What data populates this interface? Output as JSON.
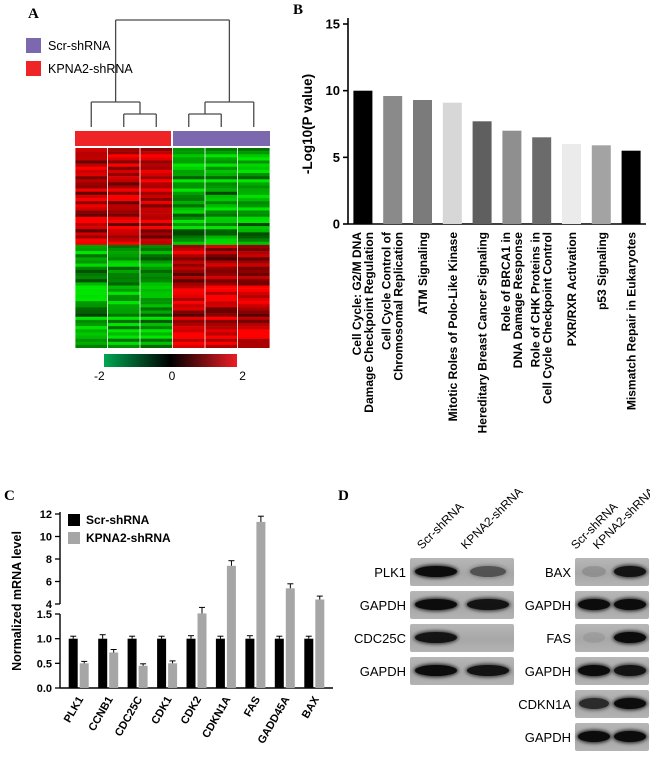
{
  "panels": {
    "a": "A",
    "b": "B",
    "c": "C",
    "d": "D"
  },
  "panel_a": {
    "legend": [
      {
        "label": "Scr-shRNA",
        "color": "#7c68ae"
      },
      {
        "label": "KPNA2-shRNA",
        "color": "#ee2426"
      }
    ],
    "column_group_bars": [
      {
        "name": "KPNA2-shRNA",
        "color": "#ee2426"
      },
      {
        "name": "Scr-shRNA",
        "color": "#7c68ae"
      }
    ],
    "colorbar": {
      "labels": [
        "-2",
        "0",
        "2"
      ],
      "colors": [
        "#00a651",
        "#000000",
        "#ed1c24"
      ]
    }
  },
  "chart_data": [
    {
      "type": "heatmap",
      "panel": "A",
      "groups": [
        "KPNA2-shRNA",
        "Scr-shRNA"
      ],
      "columns_per_group": 3,
      "rows": 64,
      "top_block_fraction": 0.47,
      "pattern": {
        "KPNA2-shRNA": {
          "top": "up-regulated (red)",
          "bottom": "down-regulated (green)"
        },
        "Scr-shRNA": {
          "top": "down-regulated (green)",
          "bottom": "up-regulated (red)"
        }
      },
      "color_scale": {
        "min": -2,
        "mid": 0,
        "max": 2,
        "min_color": "#00a651",
        "mid_color": "#000000",
        "max_color": "#ed1c24"
      },
      "dendrogram": "two main clusters of 3 samples each"
    },
    {
      "type": "bar",
      "panel": "B",
      "ylabel": "-Log10(P value)",
      "ylim": [
        0,
        15
      ],
      "yticks": [
        0,
        5,
        10,
        15
      ],
      "categories": [
        [
          "Cell Cycle: G2/M DNA",
          "Damage Checkpoint Regulation"
        ],
        [
          "Cell Cycle Control of",
          "Chromosomal Replication"
        ],
        [
          "ATM Signaling"
        ],
        [
          "Mitotic Roles of Polo-Like Kinase"
        ],
        [
          "Hereditary Breast Cancer Signaling"
        ],
        [
          "Role of BRCA1 in",
          "DNA Damage Response"
        ],
        [
          "Role of CHK Proteins in",
          "Cell Cycle Checkpoint Control"
        ],
        [
          "PXR/RXR Activation"
        ],
        [
          "p53 Signaling"
        ],
        [
          "Mismatch Repair in Eukaryotes"
        ]
      ],
      "values": [
        10.0,
        9.6,
        9.3,
        9.1,
        7.7,
        7.0,
        6.5,
        6.0,
        5.9,
        5.5
      ],
      "bar_colors": [
        "#000000",
        "#8a8a8a",
        "#7b7b7b",
        "#d7d7d7",
        "#5f5f5f",
        "#8f8f8f",
        "#6b6b6b",
        "#ebebeb",
        "#a3a3a3",
        "#000000"
      ]
    },
    {
      "type": "bar",
      "panel": "C",
      "grouped": true,
      "ylabel": "Normalized mRNA level",
      "broken_axis": {
        "lower": [
          0,
          1.5
        ],
        "lower_ticks": [
          "0.0",
          "0.5",
          "1.0",
          "1.5"
        ],
        "upper": [
          4,
          12
        ],
        "upper_ticks": [
          "4",
          "6",
          "8",
          "10",
          "12"
        ]
      },
      "categories": [
        "PLK1",
        "CCNB1",
        "CDC25C",
        "CDK1",
        "CDK2",
        "CDKN1A",
        "FAS",
        "GADD45A",
        "BAX"
      ],
      "series": [
        {
          "name": "Scr-shRNA",
          "color": "#000000",
          "values": [
            1.0,
            1.0,
            1.0,
            1.0,
            1.0,
            1.0,
            1.0,
            1.0,
            1.0
          ],
          "errors": [
            0.05,
            0.08,
            0.05,
            0.05,
            0.06,
            0.05,
            0.06,
            0.05,
            0.05
          ]
        },
        {
          "name": "KPNA2-shRNA",
          "color": "#a6a6a6",
          "values": [
            0.5,
            0.72,
            0.45,
            0.5,
            1.65,
            7.4,
            11.3,
            5.4,
            4.4
          ],
          "errors": [
            0.04,
            0.06,
            0.04,
            0.05,
            0.12,
            0.45,
            0.5,
            0.4,
            0.3
          ]
        }
      ],
      "legend_position": "top-left"
    }
  ],
  "panel_d": {
    "lane_headers": [
      "Scr-shRNA",
      "KPNA2-shRNA"
    ],
    "left_blots": [
      {
        "label": "PLK1",
        "bands": [
          1.0,
          0.55
        ]
      },
      {
        "label": "GAPDH",
        "bands": [
          1.0,
          0.95
        ]
      },
      {
        "label": "CDC25C",
        "bands": [
          0.95,
          0.05
        ]
      },
      {
        "label": "GAPDH",
        "bands": [
          1.0,
          0.95
        ]
      }
    ],
    "right_blots": [
      {
        "label": "BAX",
        "bands": [
          0.15,
          0.95
        ]
      },
      {
        "label": "GAPDH",
        "bands": [
          1.0,
          1.0
        ]
      },
      {
        "label": "FAS",
        "bands": [
          0.08,
          1.0
        ]
      },
      {
        "label": "GAPDH",
        "bands": [
          1.0,
          0.95
        ]
      },
      {
        "label": "CDKN1A",
        "bands": [
          0.8,
          1.0
        ]
      },
      {
        "label": "GAPDH",
        "bands": [
          1.0,
          1.0
        ]
      }
    ]
  }
}
